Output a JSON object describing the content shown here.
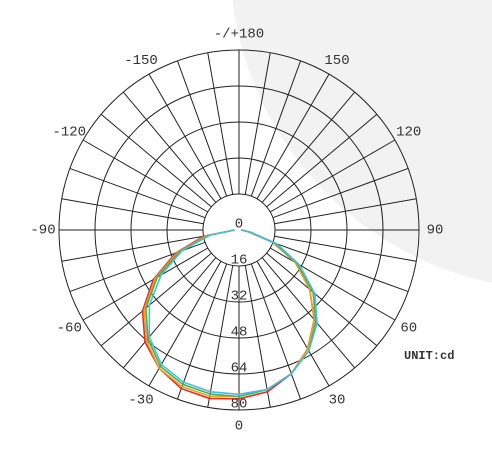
{
  "chart_data": {
    "type": "polar",
    "annotation": "UNIT:cd",
    "rlim": [
      0,
      80
    ],
    "rticks": [
      0,
      16,
      32,
      48,
      64,
      80
    ],
    "angleticks": [
      {
        "value": 180,
        "label": "-/+180"
      },
      150,
      120,
      90,
      60,
      30,
      0,
      -30,
      -60,
      -90,
      -120,
      -150
    ],
    "x": [
      -90,
      -80,
      -70,
      -60,
      -50,
      -40,
      -30,
      -20,
      -10,
      0,
      10,
      20,
      30,
      40,
      50,
      60,
      70,
      80,
      90
    ],
    "series": [
      {
        "color": "#e0302a",
        "values": [
          2,
          16,
          30,
          44,
          56,
          65,
          71,
          75,
          76,
          75,
          73,
          68,
          61,
          52,
          41,
          29,
          16,
          4,
          1
        ]
      },
      {
        "color": "#f0a020",
        "values": [
          2,
          15,
          29,
          43,
          55,
          64,
          71,
          74,
          75,
          74,
          72,
          68,
          61,
          52,
          41,
          29,
          16,
          4,
          1
        ]
      },
      {
        "color": "#4caf50",
        "values": [
          2,
          14,
          28,
          42,
          54,
          63,
          70,
          73,
          74,
          74,
          72,
          68,
          62,
          53,
          43,
          30,
          17,
          5,
          1
        ]
      },
      {
        "color": "#40c0e0",
        "values": [
          2,
          13,
          27,
          40,
          52,
          62,
          69,
          72,
          73,
          73,
          72,
          68,
          62,
          54,
          44,
          31,
          18,
          5,
          1
        ]
      }
    ]
  }
}
